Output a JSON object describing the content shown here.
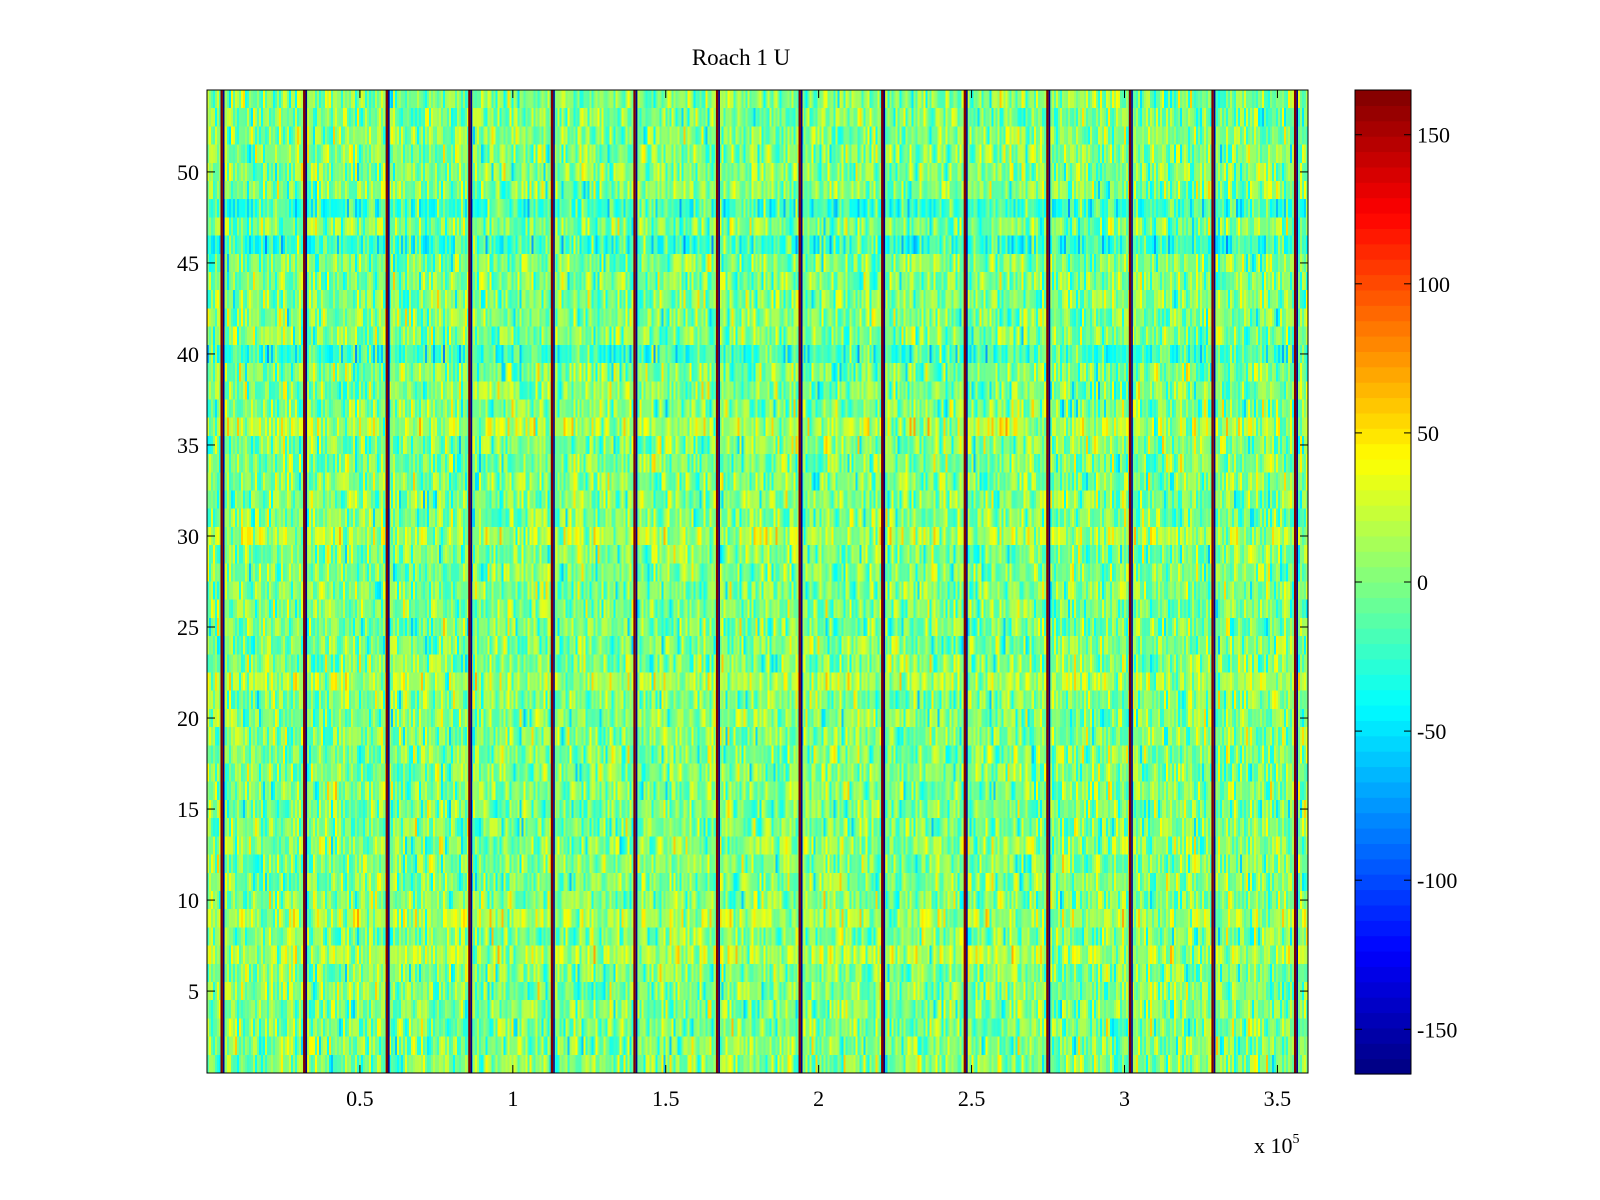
{
  "chart_data": {
    "type": "heatmap",
    "title": "Roach 1 U",
    "xlabel": "",
    "ylabel": "",
    "x_multiplier_label": "x 10",
    "x_multiplier_exponent": "5",
    "xlim": [
      0,
      360000
    ],
    "ylim": [
      0.5,
      54.5
    ],
    "rows": 54,
    "x_ticks": [
      50000,
      100000,
      150000,
      200000,
      250000,
      300000,
      350000
    ],
    "x_tick_labels": [
      "0.5",
      "1",
      "1.5",
      "2",
      "2.5",
      "3",
      "3.5"
    ],
    "y_ticks": [
      5,
      10,
      15,
      20,
      25,
      30,
      35,
      40,
      45,
      50
    ],
    "y_tick_labels": [
      "5",
      "10",
      "15",
      "20",
      "25",
      "30",
      "35",
      "40",
      "45",
      "50"
    ],
    "colorbar": {
      "colormap": "jet",
      "clim": [
        -165,
        165
      ],
      "ticks": [
        -150,
        -100,
        -50,
        0,
        50,
        100,
        150
      ],
      "tick_labels": [
        "-150",
        "-100",
        "-50",
        "0",
        "50",
        "100",
        "150"
      ]
    },
    "value_summary": {
      "background_mean": 0,
      "background_range": [
        -40,
        40
      ],
      "spike_positions": [
        5000,
        32000,
        59000,
        86000,
        113000,
        140000,
        167000,
        194000,
        221000,
        248000,
        275000,
        302000,
        329000,
        356000
      ],
      "spike_values": [
        165,
        -160
      ],
      "blue_band_rows": [
        40,
        46,
        48
      ],
      "yellow_band_rows": [
        7,
        9,
        22,
        30,
        36
      ]
    }
  }
}
